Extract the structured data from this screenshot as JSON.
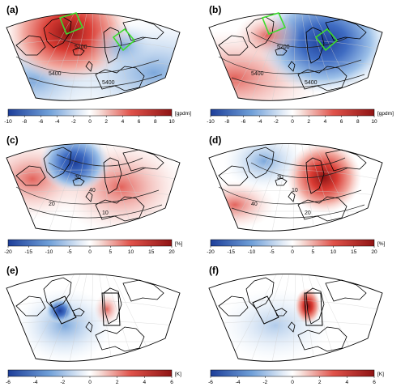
{
  "figure": {
    "panels": [
      {
        "id": "a",
        "label": "(a)",
        "colorbar": "geo",
        "center": "red",
        "contours": [
          "5200",
          "5400",
          "5400"
        ],
        "boxes": "green"
      },
      {
        "id": "b",
        "label": "(b)",
        "colorbar": "geo",
        "center": "blue",
        "contours": [
          "5200",
          "5400",
          "5400"
        ],
        "boxes": "green"
      },
      {
        "id": "c",
        "label": "(c)",
        "colorbar": "pct",
        "center": "blue",
        "contours": [
          "30",
          "20",
          "10",
          "40"
        ],
        "boxes": "none"
      },
      {
        "id": "d",
        "label": "(d)",
        "colorbar": "pct",
        "center": "red",
        "contours": [
          "30",
          "40",
          "20",
          "10"
        ],
        "boxes": "none"
      },
      {
        "id": "e",
        "label": "(e)",
        "colorbar": "temp",
        "center": "blue",
        "contours": [],
        "boxes": "black"
      },
      {
        "id": "f",
        "label": "(f)",
        "colorbar": "temp",
        "center": "red",
        "contours": [],
        "boxes": "black"
      }
    ],
    "colorbars": {
      "geo": {
        "ticks": [
          "-10",
          "-8",
          "-6",
          "-4",
          "-2",
          "0",
          "2",
          "4",
          "6",
          "8",
          "10"
        ],
        "unit": "[gpdm]"
      },
      "pct": {
        "ticks": [
          "-20",
          "-15",
          "-10",
          "-5",
          "0",
          "5",
          "10",
          "15",
          "20"
        ],
        "unit": "[%]"
      },
      "temp": {
        "ticks": [
          "-6",
          "-4",
          "-2",
          "0",
          "2",
          "4",
          "6"
        ],
        "unit": "[K]"
      }
    },
    "colors": {
      "deep_blue": "#1d3e99",
      "mid_blue": "#6f9fd8",
      "light_blue": "#d6e6f6",
      "white": "#ffffff",
      "light_red": "#f7d3cc",
      "mid_red": "#e0524a",
      "deep_red": "#8f1414",
      "box_green": "#3ddc2d",
      "coast": "#000000"
    }
  }
}
